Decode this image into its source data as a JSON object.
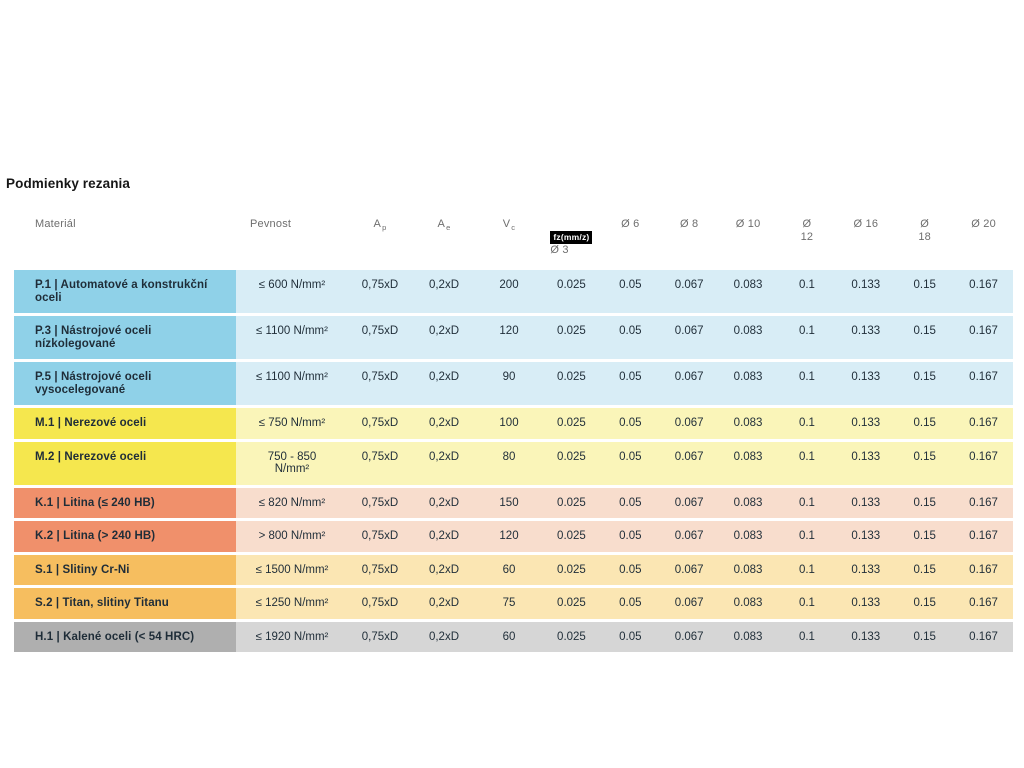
{
  "title": "Podmienky rezania",
  "fz_badge": "fz(mm/z)",
  "columns": {
    "material": "Materiál",
    "pevnost": "Pevnost",
    "ap_main": "A",
    "ap_sub": "p",
    "ae_main": "A",
    "ae_sub": "e",
    "vc_main": "V",
    "vc_sub": "c",
    "diameters": [
      "Ø 3",
      "Ø 6",
      "Ø 8",
      "Ø 10",
      "Ø\n12",
      "Ø 16",
      "Ø\n18",
      "Ø 20"
    ]
  },
  "colors": {
    "text": "#1F2D38",
    "header_text": "#6E6E6E",
    "badge_bg": "#000000",
    "badge_text": "#FFFFFF",
    "groups": {
      "P": {
        "material": "#8FD1E8",
        "data": "#D8EDF6"
      },
      "M": {
        "material": "#F5E74E",
        "data": "#FAF5B9"
      },
      "K": {
        "material": "#F0906B",
        "data": "#F8DDCD"
      },
      "S": {
        "material": "#F6BE5F",
        "data": "#FBE6B3"
      },
      "H": {
        "material": "#AFAFAF",
        "data": "#D6D6D6"
      }
    }
  },
  "rows": [
    {
      "group": "P",
      "material": "P.1 | Automatové a konstrukční oceli",
      "pevnost": "≤ 600 N/mm²",
      "ap": "0,75xD",
      "ae": "0,2xD",
      "vc": "200",
      "fz": [
        "0.025",
        "0.05",
        "0.067",
        "0.083",
        "0.1",
        "0.133",
        "0.15",
        "0.167"
      ]
    },
    {
      "group": "P",
      "material": "P.3 | Nástrojové oceli nízkolegované",
      "pevnost": "≤ 1100 N/mm²",
      "ap": "0,75xD",
      "ae": "0,2xD",
      "vc": "120",
      "fz": [
        "0.025",
        "0.05",
        "0.067",
        "0.083",
        "0.1",
        "0.133",
        "0.15",
        "0.167"
      ]
    },
    {
      "group": "P",
      "material": "P.5 | Nástrojové oceli vysocelegované",
      "pevnost": "≤ 1100 N/mm²",
      "ap": "0,75xD",
      "ae": "0,2xD",
      "vc": "90",
      "fz": [
        "0.025",
        "0.05",
        "0.067",
        "0.083",
        "0.1",
        "0.133",
        "0.15",
        "0.167"
      ]
    },
    {
      "group": "M",
      "material": "M.1 | Nerezové oceli",
      "pevnost": "≤ 750 N/mm²",
      "ap": "0,75xD",
      "ae": "0,2xD",
      "vc": "100",
      "fz": [
        "0.025",
        "0.05",
        "0.067",
        "0.083",
        "0.1",
        "0.133",
        "0.15",
        "0.167"
      ]
    },
    {
      "group": "M",
      "material": "M.2 | Nerezové oceli",
      "pevnost": "750 - 850\nN/mm²",
      "ap": "0,75xD",
      "ae": "0,2xD",
      "vc": "80",
      "fz": [
        "0.025",
        "0.05",
        "0.067",
        "0.083",
        "0.1",
        "0.133",
        "0.15",
        "0.167"
      ]
    },
    {
      "group": "K",
      "material": "K.1 | Litina (≤ 240 HB)",
      "pevnost": "≤ 820 N/mm²",
      "ap": "0,75xD",
      "ae": "0,2xD",
      "vc": "150",
      "fz": [
        "0.025",
        "0.05",
        "0.067",
        "0.083",
        "0.1",
        "0.133",
        "0.15",
        "0.167"
      ]
    },
    {
      "group": "K",
      "material": "K.2 | Litina (> 240 HB)",
      "pevnost": "> 800 N/mm²",
      "ap": "0,75xD",
      "ae": "0,2xD",
      "vc": "120",
      "fz": [
        "0.025",
        "0.05",
        "0.067",
        "0.083",
        "0.1",
        "0.133",
        "0.15",
        "0.167"
      ]
    },
    {
      "group": "S",
      "material": "S.1 | Slitiny Cr-Ni",
      "pevnost": "≤ 1500 N/mm²",
      "ap": "0,75xD",
      "ae": "0,2xD",
      "vc": "60",
      "fz": [
        "0.025",
        "0.05",
        "0.067",
        "0.083",
        "0.1",
        "0.133",
        "0.15",
        "0.167"
      ]
    },
    {
      "group": "S",
      "material": "S.2 | Titan, slitiny Titanu",
      "pevnost": "≤ 1250 N/mm²",
      "ap": "0,75xD",
      "ae": "0,2xD",
      "vc": "75",
      "fz": [
        "0.025",
        "0.05",
        "0.067",
        "0.083",
        "0.1",
        "0.133",
        "0.15",
        "0.167"
      ]
    },
    {
      "group": "H",
      "material": "H.1 | Kalené oceli (< 54 HRC)",
      "pevnost": "≤ 1920 N/mm²",
      "ap": "0,75xD",
      "ae": "0,2xD",
      "vc": "60",
      "fz": [
        "0.025",
        "0.05",
        "0.067",
        "0.083",
        "0.1",
        "0.133",
        "0.15",
        "0.167"
      ]
    }
  ]
}
